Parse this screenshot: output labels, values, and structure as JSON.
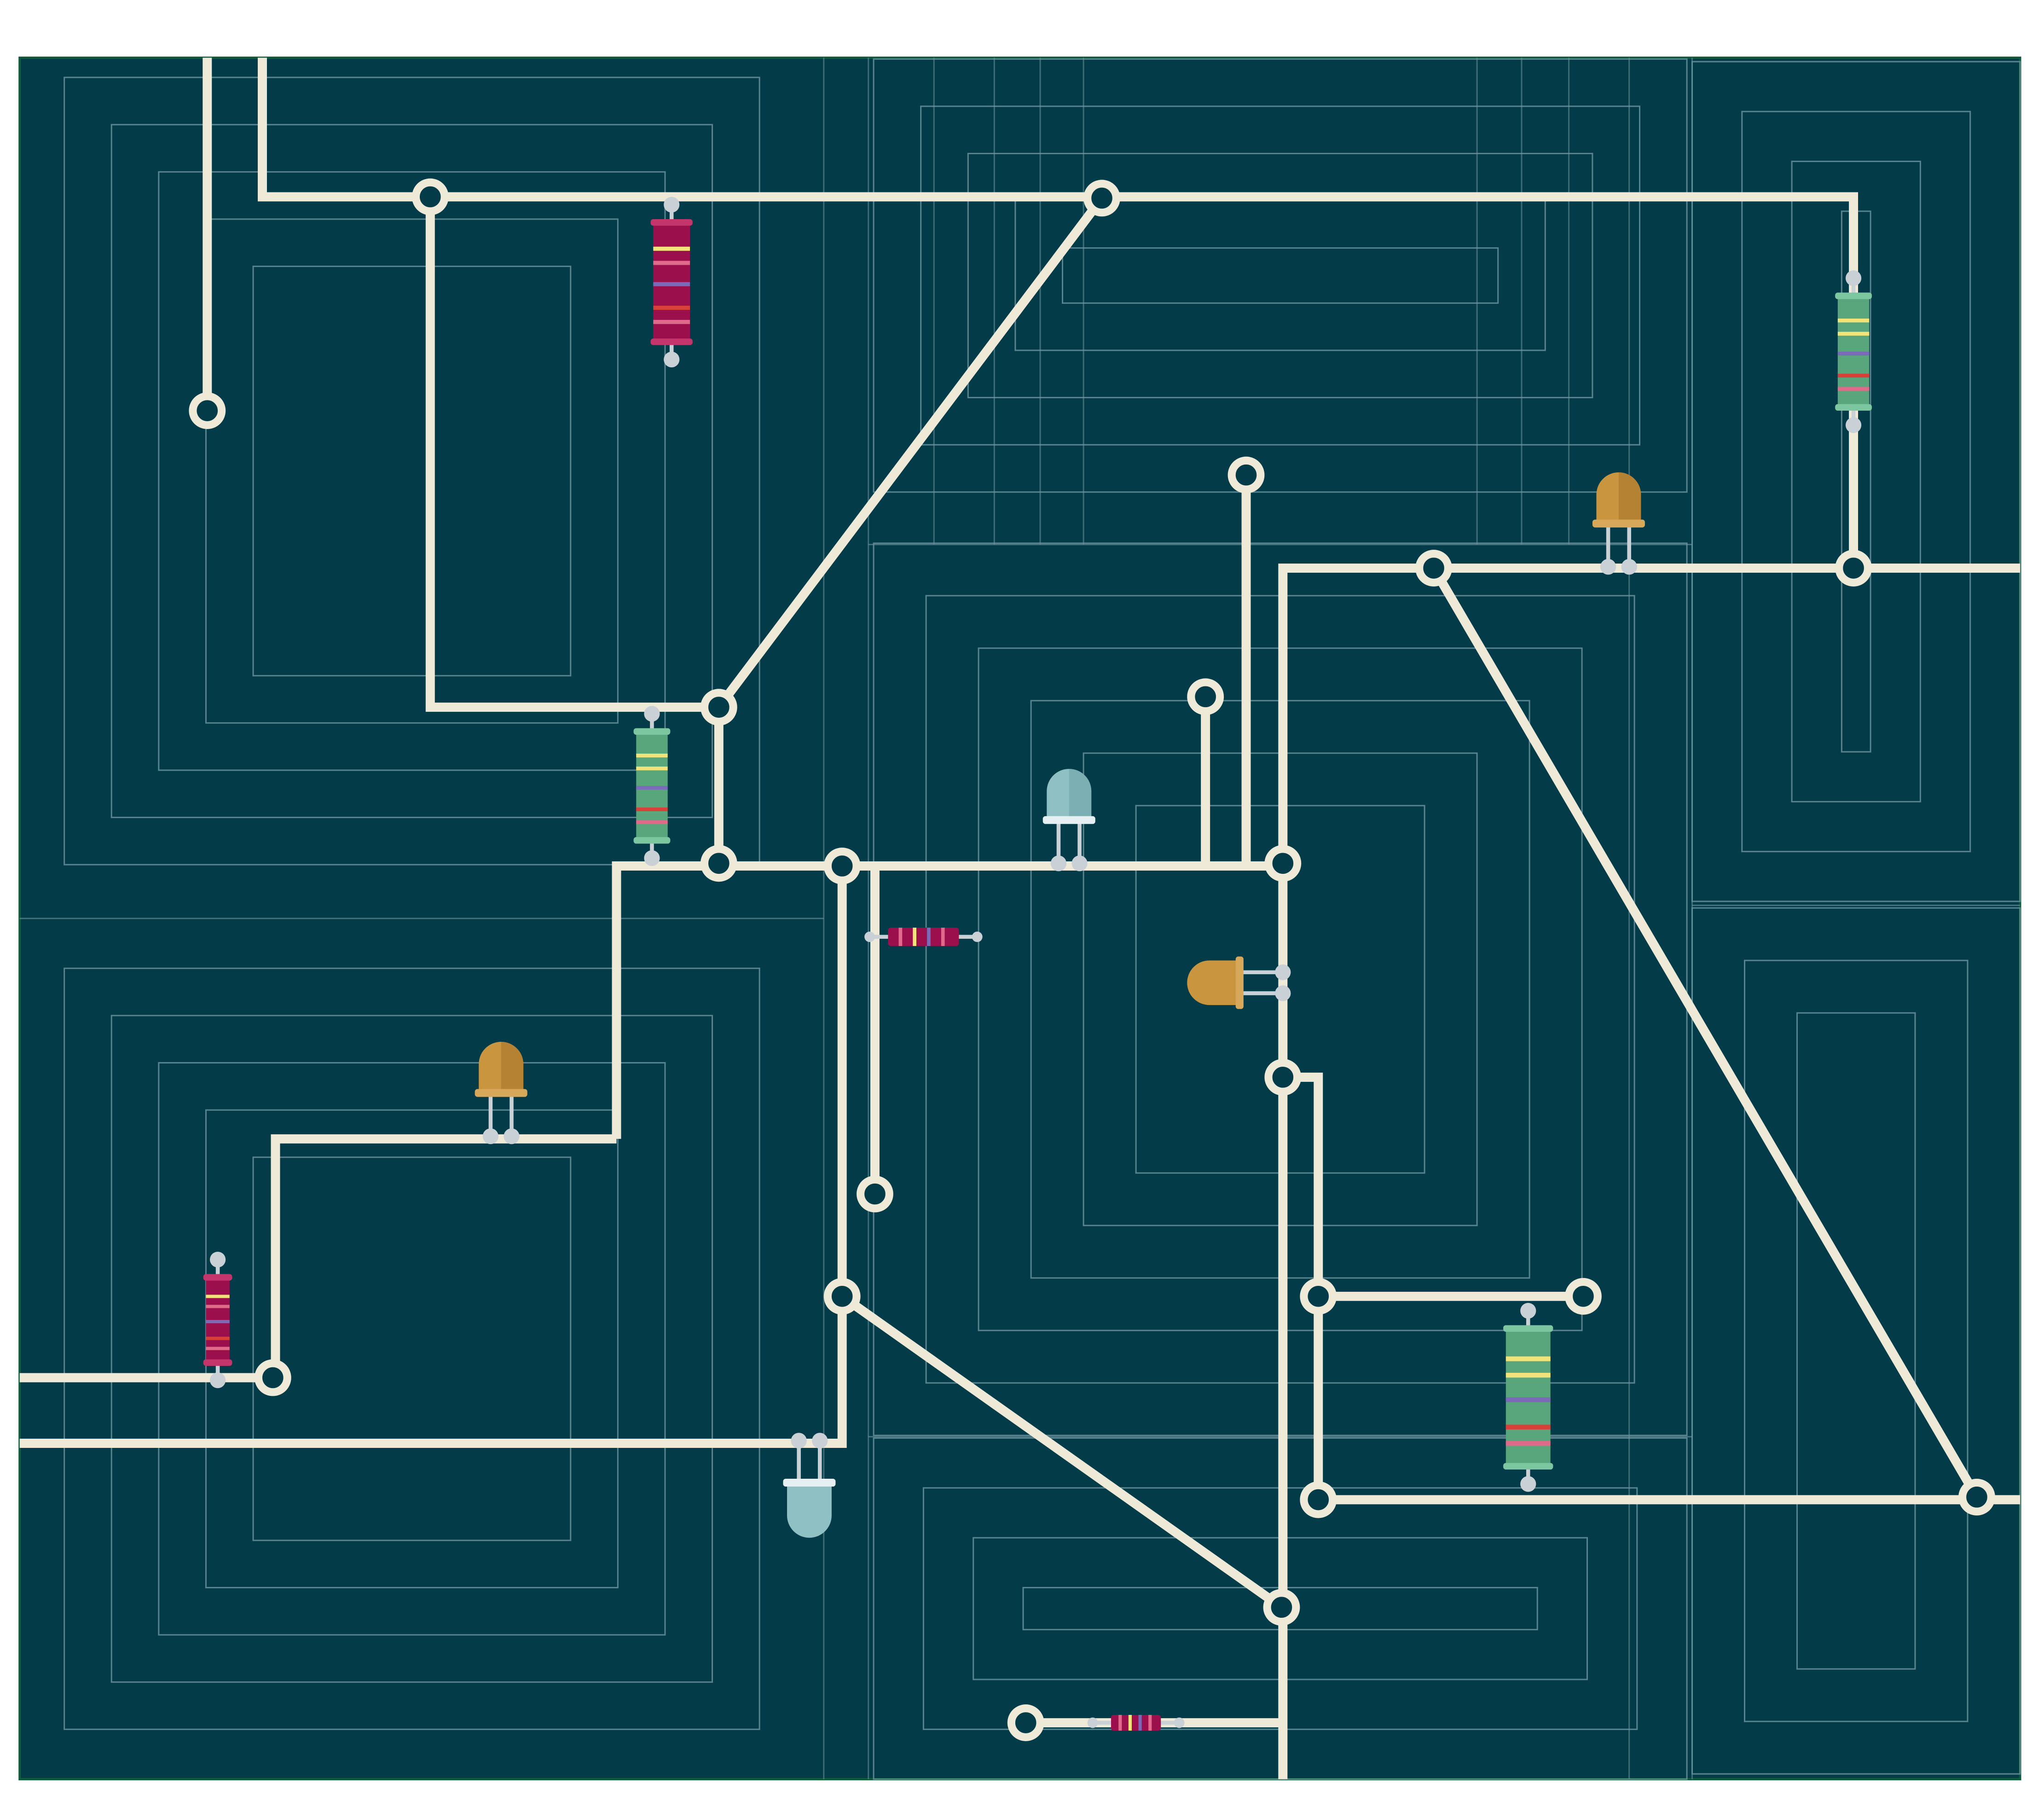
{
  "colors": {
    "page_background": "#ffffff",
    "board": "#033c48",
    "board_edge": "#0f5a3c",
    "grid_line": "#6f95a0",
    "trace": "#efe9d8",
    "pin": "#c9d0d6",
    "resistor_crimson": "#9b0f4c",
    "resistor_green": "#5aa67c",
    "band_yellow": "#f2e27a",
    "band_violet": "#7a6ab8",
    "band_red": "#d8413a",
    "led_amber": "#c9953f",
    "led_blue": "#8fc0c3"
  },
  "components": {
    "resistors": [
      {
        "name": "resistor-r1",
        "body": "crimson",
        "orientation": "vertical"
      },
      {
        "name": "resistor-r2",
        "body": "green",
        "orientation": "vertical"
      },
      {
        "name": "resistor-r3",
        "body": "green",
        "orientation": "vertical"
      },
      {
        "name": "resistor-r4",
        "body": "crimson",
        "orientation": "vertical"
      },
      {
        "name": "resistor-r5",
        "body": "crimson",
        "orientation": "horizontal"
      },
      {
        "name": "resistor-r6",
        "body": "green",
        "orientation": "vertical"
      },
      {
        "name": "resistor-r7",
        "body": "crimson",
        "orientation": "horizontal"
      }
    ],
    "leds": [
      {
        "name": "led-amber-top-right",
        "color": "amber",
        "facing": "up"
      },
      {
        "name": "led-blue-center",
        "color": "blue",
        "facing": "up"
      },
      {
        "name": "led-amber-left",
        "color": "amber",
        "facing": "up"
      },
      {
        "name": "led-amber-center",
        "color": "amber",
        "facing": "left"
      },
      {
        "name": "led-blue-bottom",
        "color": "blue",
        "facing": "down"
      }
    ]
  }
}
